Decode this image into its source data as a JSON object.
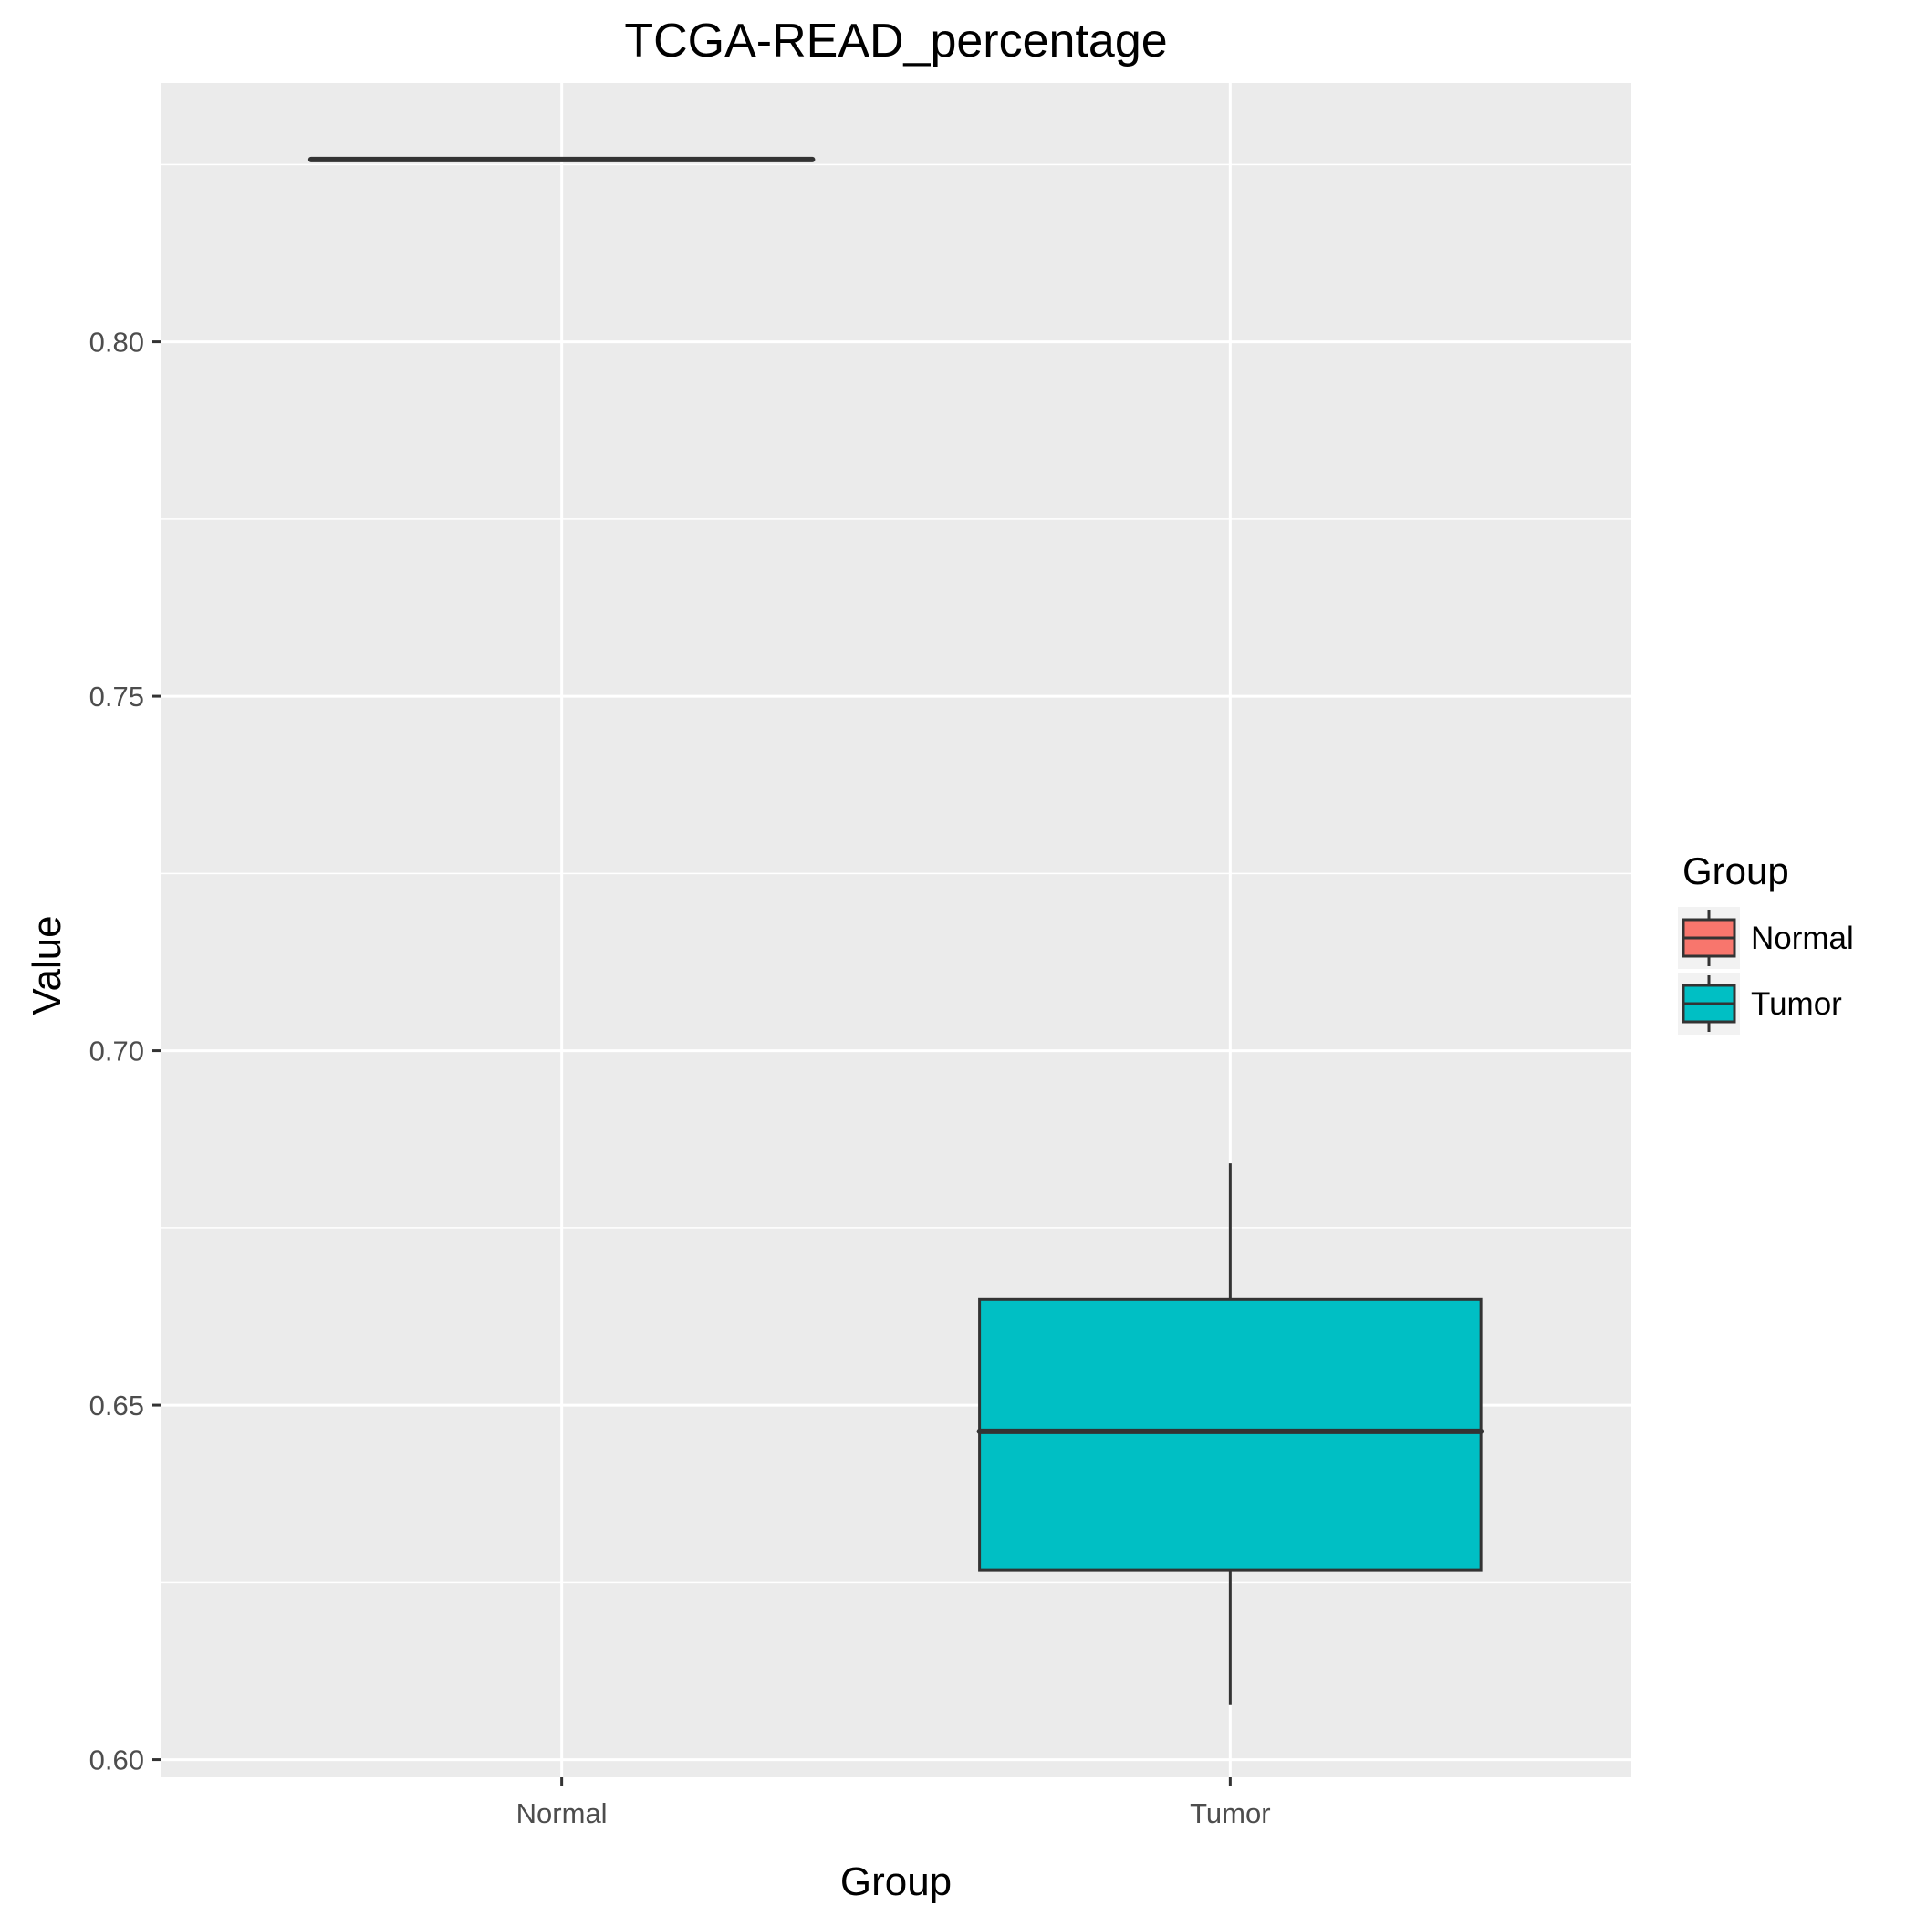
{
  "chart_data": {
    "type": "box",
    "title": "TCGA-READ_percentage",
    "xlabel": "Group",
    "ylabel": "Value",
    "categories": [
      "Normal",
      "Tumor"
    ],
    "ylim": [
      0.5975,
      0.8365
    ],
    "yticks": [
      {
        "value": 0.6,
        "label": "0.60"
      },
      {
        "value": 0.65,
        "label": "0.65"
      },
      {
        "value": 0.7,
        "label": "0.70"
      },
      {
        "value": 0.75,
        "label": "0.75"
      },
      {
        "value": 0.8,
        "label": "0.80"
      }
    ],
    "y_minor_gridlines": [
      0.625,
      0.675,
      0.725,
      0.775,
      0.825
    ],
    "boxes": [
      {
        "group": "Normal",
        "color": "#F8766D",
        "min": 0.8257,
        "q1": 0.8257,
        "median": 0.8257,
        "q3": 0.8257,
        "max": 0.8257
      },
      {
        "group": "Tumor",
        "color": "#00BFC4",
        "min": 0.6077,
        "q1": 0.6267,
        "median": 0.6463,
        "q3": 0.6649,
        "max": 0.6841
      }
    ],
    "legend": {
      "title": "Group",
      "placement": "right",
      "entries": [
        {
          "label": "Normal",
          "color": "#F8766D"
        },
        {
          "label": "Tumor",
          "color": "#00BFC4"
        }
      ]
    },
    "grid": true,
    "panel_background": "#EBEBEB",
    "gridline_color": "#FFFFFF",
    "box_outline_color": "#333333"
  }
}
